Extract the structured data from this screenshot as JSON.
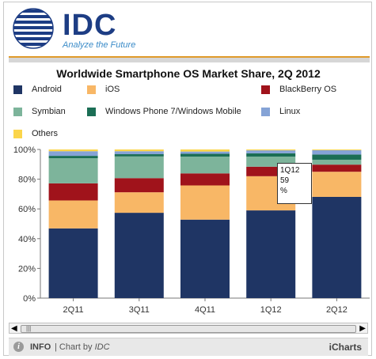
{
  "brand": {
    "name": "IDC",
    "tagline": "Analyze the Future",
    "colors": {
      "primary": "#1d3d84",
      "accent": "#e09a2a"
    }
  },
  "chart_data": {
    "type": "bar",
    "stacked": true,
    "title": "Worldwide Smartphone OS Market Share, 2Q 2012",
    "xlabel": "",
    "ylabel": "",
    "categories": [
      "2Q11",
      "3Q11",
      "4Q11",
      "1Q12",
      "2Q12"
    ],
    "ylim": [
      0,
      100
    ],
    "yticks": [
      "0%",
      "20%",
      "40%",
      "60%",
      "80%",
      "100%"
    ],
    "grid": false,
    "legend_position": "top",
    "series": [
      {
        "name": "Android",
        "color": "#1f3564",
        "values": [
          46.9,
          57.4,
          52.8,
          59.0,
          68.1
        ]
      },
      {
        "name": "iOS",
        "color": "#f8b766",
        "values": [
          18.8,
          13.8,
          23.0,
          23.0,
          16.9
        ]
      },
      {
        "name": "BlackBerry OS",
        "color": "#a0131b",
        "values": [
          11.5,
          9.5,
          8.1,
          6.4,
          4.8
        ]
      },
      {
        "name": "Symbian",
        "color": "#7db49b",
        "values": [
          16.9,
          14.6,
          11.3,
          6.8,
          3.3
        ]
      },
      {
        "name": "Windows Phone 7/Windows Mobile",
        "color": "#1b6e55",
        "values": [
          1.6,
          1.5,
          1.9,
          2.2,
          3.5
        ]
      },
      {
        "name": "Linux",
        "color": "#85a3d6",
        "values": [
          3.1,
          2.0,
          1.5,
          2.0,
          2.9
        ]
      },
      {
        "name": "Others",
        "color": "#fbd54a",
        "values": [
          1.2,
          1.2,
          1.4,
          0.6,
          0.5
        ]
      }
    ],
    "tooltip": {
      "category": "1Q12",
      "value": "59",
      "unit": "%"
    }
  },
  "footer": {
    "info_icon": "i",
    "info_label": "INFO",
    "chart_by": "| Chart by",
    "chart_by_brand": "IDC",
    "powered": "iCharts"
  },
  "scrollbar": {
    "left_arrow": "◀",
    "right_arrow": "▶",
    "grip": "|||"
  }
}
